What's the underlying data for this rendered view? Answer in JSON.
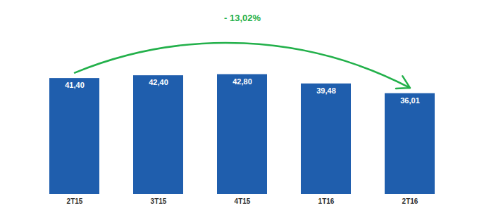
{
  "chart_data": {
    "type": "bar",
    "categories": [
      "2T15",
      "3T15",
      "4T15",
      "1T16",
      "2T16"
    ],
    "values": [
      41.4,
      42.4,
      42.8,
      39.48,
      36.01
    ],
    "value_labels": [
      "41,40",
      "42,40",
      "42,80",
      "39,48",
      "36,01"
    ],
    "data_labels": true,
    "color": "#1F5EAD",
    "ylim": [
      0,
      58
    ],
    "tick_labels": "x",
    "grid": false,
    "annotation": {
      "text": "- 13,02%",
      "color": "#22b04a"
    }
  }
}
